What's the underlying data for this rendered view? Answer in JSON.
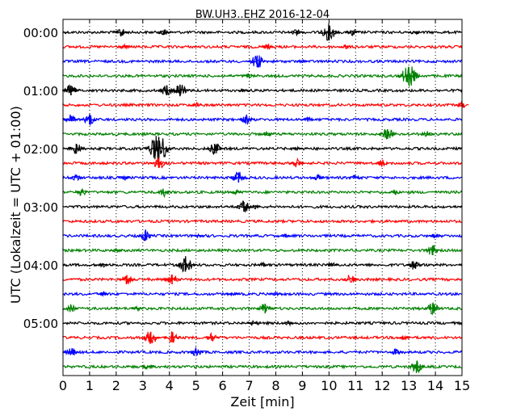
{
  "chart_data": {
    "type": "line",
    "title": "BW.UH3..EHZ 2016-12-04",
    "xlabel": "Zeit  [min]",
    "ylabel": "UTC (Lokalzeit = UTC + 01:00)",
    "xlim": [
      0,
      15
    ],
    "x_ticks": [
      "0",
      "1",
      "2",
      "3",
      "4",
      "5",
      "6",
      "7",
      "8",
      "9",
      "10",
      "11",
      "12",
      "13",
      "14",
      "15"
    ],
    "y_ticks": [
      "00:00",
      "01:00",
      "02:00",
      "03:00",
      "04:00",
      "05:00"
    ],
    "trace_interval_min": 15,
    "trace_count": 24,
    "grid": "vertical dotted lines at each minute",
    "series_colors": [
      "#000000",
      "#ff0000",
      "#0000ff",
      "#008000"
    ],
    "events": [
      {
        "trace": 0,
        "x": 2.2,
        "amp": 0.35
      },
      {
        "trace": 0,
        "x": 3.8,
        "amp": 0.3
      },
      {
        "trace": 0,
        "x": 8.8,
        "amp": 0.35
      },
      {
        "trace": 0,
        "x": 10.0,
        "amp": 0.7
      },
      {
        "trace": 0,
        "x": 10.9,
        "amp": 0.3
      },
      {
        "trace": 0,
        "x": 13.2,
        "amp": 0.2
      },
      {
        "trace": 1,
        "x": 2.3,
        "amp": 0.2
      },
      {
        "trace": 1,
        "x": 7.7,
        "amp": 0.25
      },
      {
        "trace": 1,
        "x": 10.6,
        "amp": 0.2
      },
      {
        "trace": 2,
        "x": 7.3,
        "amp": 0.6
      },
      {
        "trace": 2,
        "x": 9.0,
        "amp": 0.15
      },
      {
        "trace": 3,
        "x": 7.0,
        "amp": 0.2
      },
      {
        "trace": 3,
        "x": 13.0,
        "amp": 0.9
      },
      {
        "trace": 4,
        "x": 0.3,
        "amp": 0.5
      },
      {
        "trace": 4,
        "x": 3.9,
        "amp": 0.5
      },
      {
        "trace": 4,
        "x": 4.4,
        "amp": 0.6
      },
      {
        "trace": 4,
        "x": 6.8,
        "amp": 0.15
      },
      {
        "trace": 5,
        "x": 5.0,
        "amp": 0.2
      },
      {
        "trace": 5,
        "x": 15.0,
        "amp": 0.25
      },
      {
        "trace": 6,
        "x": 0.3,
        "amp": 0.4
      },
      {
        "trace": 6,
        "x": 1.0,
        "amp": 0.5
      },
      {
        "trace": 6,
        "x": 6.9,
        "amp": 0.4
      },
      {
        "trace": 6,
        "x": 9.2,
        "amp": 0.2
      },
      {
        "trace": 7,
        "x": 7.7,
        "amp": 0.25
      },
      {
        "trace": 7,
        "x": 12.2,
        "amp": 0.5
      },
      {
        "trace": 7,
        "x": 13.7,
        "amp": 0.25
      },
      {
        "trace": 8,
        "x": 0.5,
        "amp": 0.5
      },
      {
        "trace": 8,
        "x": 3.6,
        "amp": 1.2
      },
      {
        "trace": 8,
        "x": 5.7,
        "amp": 0.5
      },
      {
        "trace": 8,
        "x": 8.8,
        "amp": 0.15
      },
      {
        "trace": 9,
        "x": 3.6,
        "amp": 0.5
      },
      {
        "trace": 9,
        "x": 8.8,
        "amp": 0.4
      },
      {
        "trace": 9,
        "x": 12.0,
        "amp": 0.3
      },
      {
        "trace": 10,
        "x": 0.5,
        "amp": 0.3
      },
      {
        "trace": 10,
        "x": 2.3,
        "amp": 0.2
      },
      {
        "trace": 10,
        "x": 6.6,
        "amp": 0.5
      },
      {
        "trace": 10,
        "x": 9.6,
        "amp": 0.25
      },
      {
        "trace": 10,
        "x": 11.0,
        "amp": 0.25
      },
      {
        "trace": 11,
        "x": 0.7,
        "amp": 0.35
      },
      {
        "trace": 11,
        "x": 3.8,
        "amp": 0.35
      },
      {
        "trace": 11,
        "x": 6.5,
        "amp": 0.2
      },
      {
        "trace": 11,
        "x": 12.5,
        "amp": 0.2
      },
      {
        "trace": 12,
        "x": 6.8,
        "amp": 0.5
      },
      {
        "trace": 12,
        "x": 7.2,
        "amp": 0.2
      },
      {
        "trace": 14,
        "x": 3.1,
        "amp": 0.5
      },
      {
        "trace": 14,
        "x": 5.1,
        "amp": 0.2
      },
      {
        "trace": 14,
        "x": 8.4,
        "amp": 0.15
      },
      {
        "trace": 14,
        "x": 14.0,
        "amp": 0.2
      },
      {
        "trace": 15,
        "x": 2.0,
        "amp": 0.2
      },
      {
        "trace": 15,
        "x": 13.9,
        "amp": 0.5
      },
      {
        "trace": 16,
        "x": 1.5,
        "amp": 0.2
      },
      {
        "trace": 16,
        "x": 4.6,
        "amp": 0.7
      },
      {
        "trace": 16,
        "x": 7.5,
        "amp": 0.2
      },
      {
        "trace": 16,
        "x": 10.1,
        "amp": 0.25
      },
      {
        "trace": 16,
        "x": 13.2,
        "amp": 0.4
      },
      {
        "trace": 17,
        "x": 2.4,
        "amp": 0.45
      },
      {
        "trace": 17,
        "x": 4.1,
        "amp": 0.5
      },
      {
        "trace": 17,
        "x": 10.8,
        "amp": 0.4
      },
      {
        "trace": 18,
        "x": 1.5,
        "amp": 0.2
      },
      {
        "trace": 18,
        "x": 6.4,
        "amp": 0.2
      },
      {
        "trace": 18,
        "x": 8.0,
        "amp": 0.15
      },
      {
        "trace": 19,
        "x": 0.3,
        "amp": 0.35
      },
      {
        "trace": 19,
        "x": 2.8,
        "amp": 0.2
      },
      {
        "trace": 19,
        "x": 7.6,
        "amp": 0.5
      },
      {
        "trace": 19,
        "x": 13.9,
        "amp": 0.5
      },
      {
        "trace": 20,
        "x": 7.2,
        "amp": 0.3
      },
      {
        "trace": 20,
        "x": 8.5,
        "amp": 0.2
      },
      {
        "trace": 21,
        "x": 3.3,
        "amp": 0.6
      },
      {
        "trace": 21,
        "x": 4.1,
        "amp": 0.5
      },
      {
        "trace": 21,
        "x": 5.6,
        "amp": 0.35
      },
      {
        "trace": 21,
        "x": 12.8,
        "amp": 0.25
      },
      {
        "trace": 22,
        "x": 0.3,
        "amp": 0.4
      },
      {
        "trace": 22,
        "x": 5.0,
        "amp": 0.4
      },
      {
        "trace": 22,
        "x": 12.5,
        "amp": 0.3
      },
      {
        "trace": 23,
        "x": 3.2,
        "amp": 0.25
      },
      {
        "trace": 23,
        "x": 13.3,
        "amp": 0.5
      }
    ]
  }
}
